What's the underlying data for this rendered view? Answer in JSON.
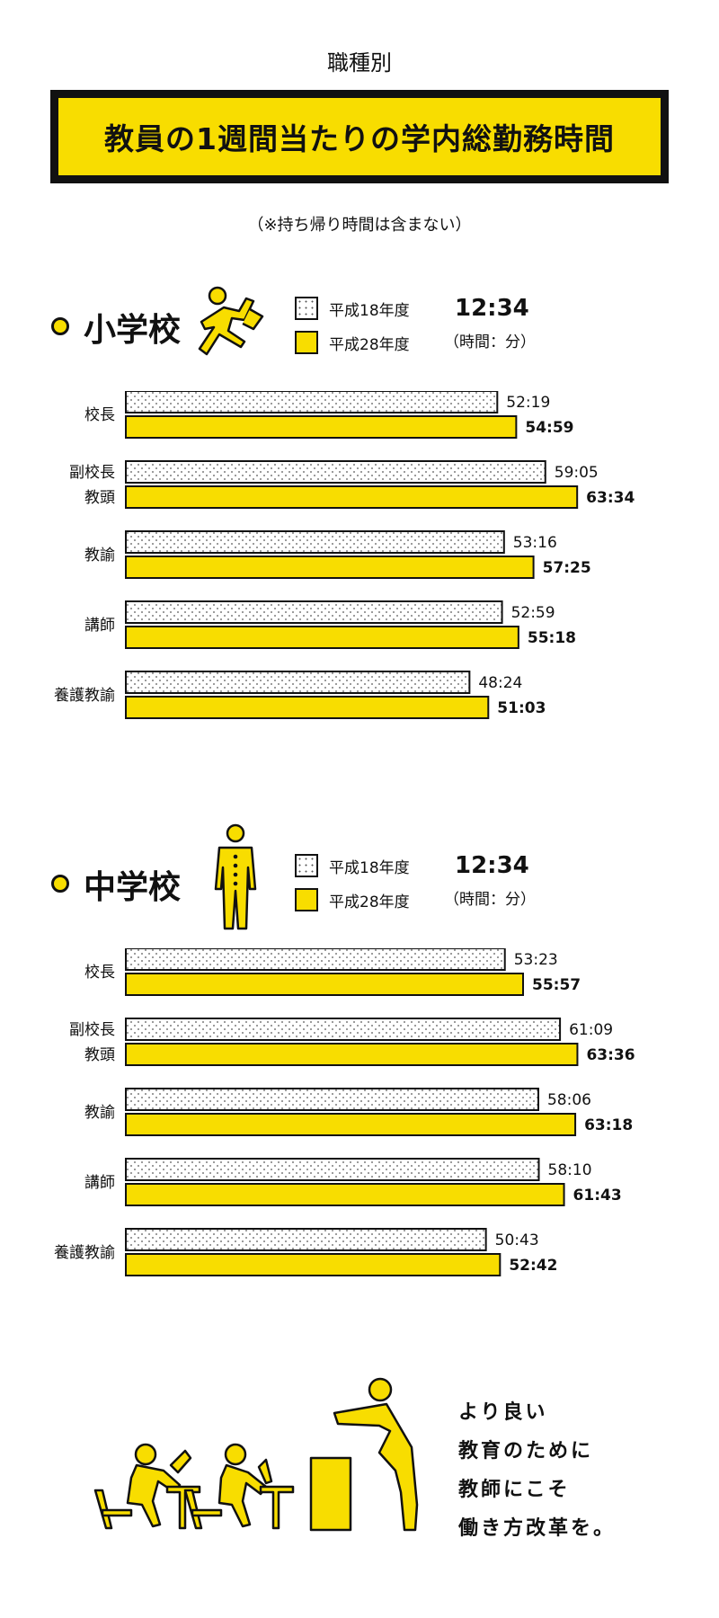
{
  "header": {
    "supertitle": "職種別",
    "title": "教員の1週間当たりの学内総勤務時間",
    "note": "（※持ち帰り時間は含まない）"
  },
  "colors": {
    "accent": "#f8dd00",
    "ink": "#111111"
  },
  "sections": [
    {
      "title": "小学校",
      "icon": "running-child-icon",
      "legend": {
        "old": "平成18年度",
        "new": "平成28年度"
      },
      "time_sample": "12:34",
      "unit_note": "（時間：分）"
    },
    {
      "title": "中学校",
      "icon": "student-uniform-icon",
      "legend": {
        "old": "平成18年度",
        "new": "平成28年度"
      },
      "time_sample": "12:34",
      "unit_note": "（時間：分）"
    }
  ],
  "chart_data": [
    {
      "type": "bar",
      "orientation": "horizontal",
      "title": "小学校",
      "categories": [
        [
          "校長"
        ],
        [
          "副校長",
          "教頭"
        ],
        [
          "教諭"
        ],
        [
          "講師"
        ],
        [
          "養護教諭"
        ]
      ],
      "series": [
        {
          "name": "平成18年度",
          "pattern": "dotted",
          "values": [
            52.3167,
            59.0833,
            53.2667,
            52.9833,
            48.4
          ],
          "labels": [
            "52:19",
            "59:05",
            "53:16",
            "52:59",
            "48:24"
          ]
        },
        {
          "name": "平成28年度",
          "color": "#f8dd00",
          "values": [
            54.9833,
            63.5667,
            57.4167,
            55.3,
            51.05
          ],
          "labels": [
            "54:59",
            "63:34",
            "57:25",
            "55:18",
            "51:03"
          ]
        }
      ]
    },
    {
      "type": "bar",
      "orientation": "horizontal",
      "title": "中学校",
      "categories": [
        [
          "校長"
        ],
        [
          "副校長",
          "教頭"
        ],
        [
          "教諭"
        ],
        [
          "講師"
        ],
        [
          "養護教諭"
        ]
      ],
      "series": [
        {
          "name": "平成18年度",
          "pattern": "dotted",
          "values": [
            53.3833,
            61.15,
            58.1,
            58.1667,
            50.7167
          ],
          "labels": [
            "53:23",
            "61:09",
            "58:06",
            "58:10",
            "50:43"
          ]
        },
        {
          "name": "平成28年度",
          "color": "#f8dd00",
          "values": [
            55.95,
            63.6,
            63.3,
            61.7167,
            52.7
          ],
          "labels": [
            "55:57",
            "63:36",
            "63:18",
            "61:43",
            "52:42"
          ]
        }
      ]
    }
  ],
  "closing": {
    "lines": [
      "より良い",
      "教育のために",
      "教師にこそ",
      "働き方改革を。"
    ],
    "icon": "classroom-teacher-students-icon"
  }
}
